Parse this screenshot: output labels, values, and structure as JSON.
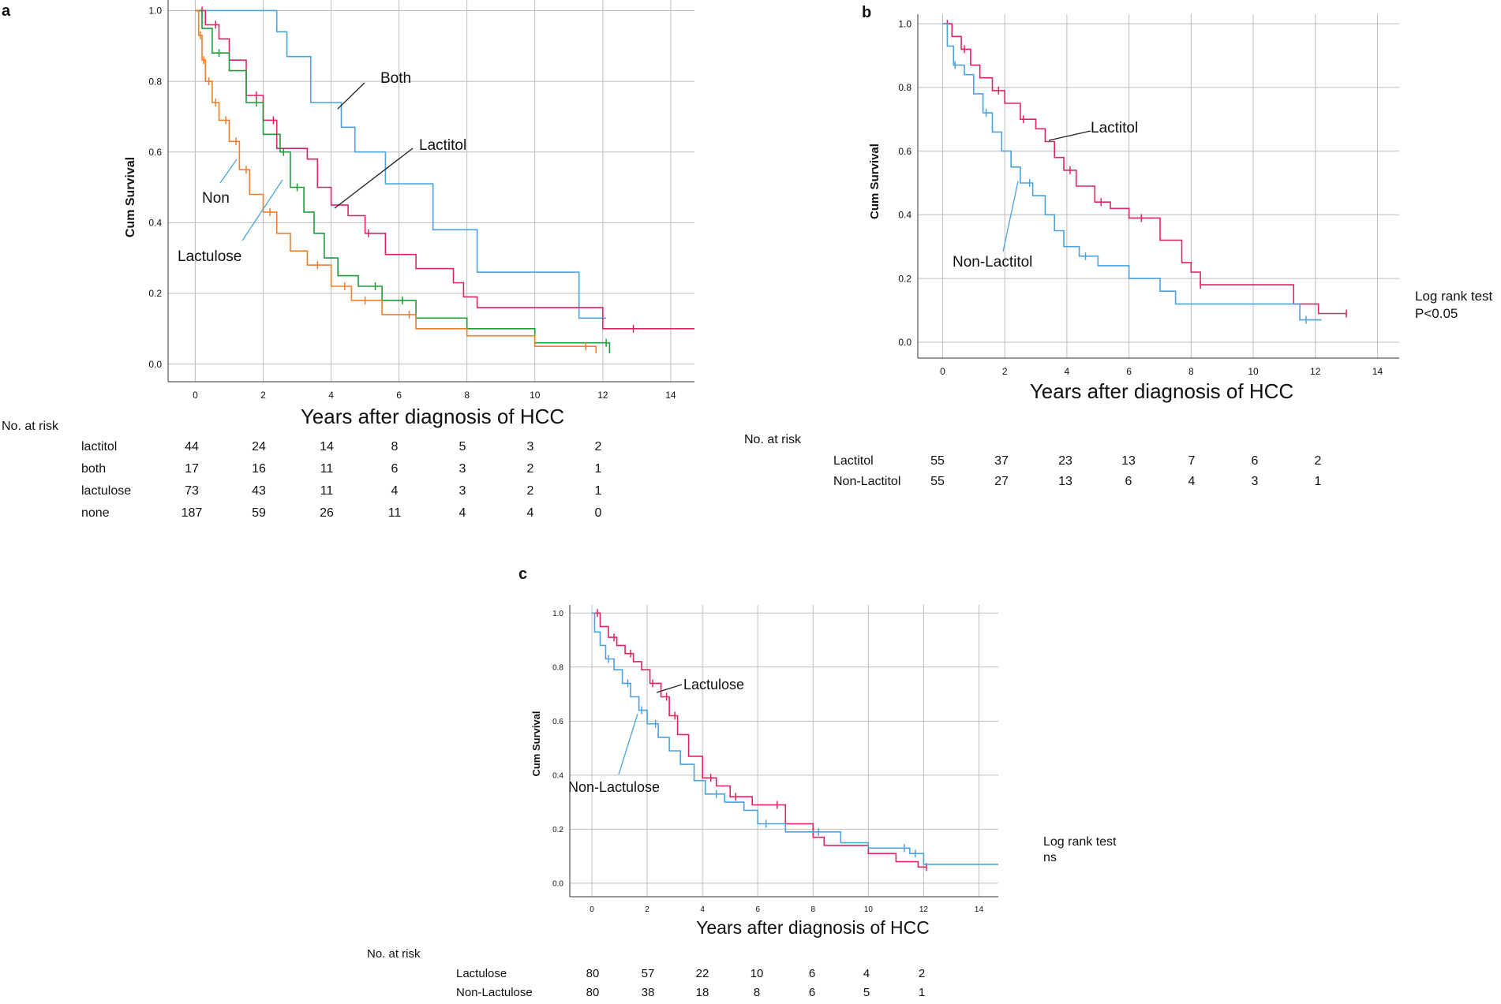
{
  "colors": {
    "lactitol": "#e0245e",
    "both": "#4aa3df",
    "lactulose": "#1f9a3a",
    "none": "#f07f2a",
    "grid": "#bdbdbd",
    "axis": "#333333"
  },
  "chart_data": [
    {
      "panel": "a",
      "type": "line",
      "title": "",
      "xlabel": "Years after diagnosis of HCC",
      "ylabel": "Cum Survival",
      "xlim": [
        -0.8,
        14.7
      ],
      "ylim": [
        -0.05,
        1.03
      ],
      "xticks": [
        "0",
        "2",
        "4",
        "6",
        "8",
        "10",
        "12",
        "14"
      ],
      "yticks": [
        "0.0",
        "0.2",
        "0.4",
        "0.6",
        "0.8",
        "1.0"
      ],
      "grid": true,
      "annotations": [
        "Both",
        "Lactitol",
        "Non",
        "Lactulose"
      ],
      "series": [
        {
          "name": "Both",
          "color_key": "both",
          "x": [
            0,
            2.4,
            2.7,
            3.4,
            4.3,
            4.7,
            5.6,
            7.0,
            8.3,
            11.3,
            12.1
          ],
          "y": [
            1.0,
            0.94,
            0.87,
            0.74,
            0.67,
            0.6,
            0.51,
            0.38,
            0.26,
            0.13,
            0.13
          ]
        },
        {
          "name": "Lactitol",
          "color_key": "lactitol",
          "x": [
            0,
            0.3,
            0.7,
            1.0,
            1.5,
            2.0,
            2.4,
            3.3,
            3.6,
            4.0,
            4.5,
            5.0,
            5.6,
            6.5,
            7.6,
            7.9,
            8.3,
            12.0,
            14.7
          ],
          "y": [
            1.0,
            0.96,
            0.92,
            0.86,
            0.76,
            0.69,
            0.61,
            0.58,
            0.5,
            0.45,
            0.42,
            0.37,
            0.31,
            0.27,
            0.23,
            0.19,
            0.16,
            0.1,
            0.1
          ],
          "censor_x": [
            0.2,
            0.6,
            1.8,
            2.3,
            5.1,
            12.9
          ]
        },
        {
          "name": "Lactulose",
          "color_key": "lactulose",
          "x": [
            0,
            0.2,
            0.5,
            1.0,
            1.5,
            2.0,
            2.5,
            2.8,
            3.2,
            3.5,
            3.8,
            4.2,
            4.8,
            5.5,
            6.5,
            8.0,
            10.0,
            12.2
          ],
          "y": [
            1.0,
            0.95,
            0.88,
            0.83,
            0.74,
            0.65,
            0.6,
            0.5,
            0.43,
            0.37,
            0.3,
            0.25,
            0.22,
            0.18,
            0.13,
            0.1,
            0.06,
            0.03
          ],
          "censor_x": [
            0.7,
            1.8,
            2.6,
            3.0,
            5.3,
            6.1,
            12.1
          ]
        },
        {
          "name": "Non",
          "color_key": "none",
          "x": [
            0,
            0.1,
            0.2,
            0.3,
            0.5,
            0.7,
            1.0,
            1.3,
            1.6,
            2.0,
            2.4,
            2.8,
            3.3,
            4.0,
            4.6,
            5.5,
            6.5,
            8.0,
            10.0,
            11.8
          ],
          "y": [
            1.0,
            0.93,
            0.86,
            0.8,
            0.74,
            0.69,
            0.63,
            0.55,
            0.48,
            0.43,
            0.37,
            0.32,
            0.28,
            0.22,
            0.18,
            0.14,
            0.1,
            0.08,
            0.05,
            0.03
          ],
          "censor_x": [
            0.15,
            0.25,
            0.4,
            0.6,
            0.9,
            1.2,
            1.5,
            2.2,
            3.6,
            4.4,
            5.0,
            6.3,
            11.5
          ]
        }
      ],
      "risk_table": {
        "header": "No. at risk",
        "rows": [
          {
            "label": "lactitol",
            "values": [
              "44",
              "24",
              "14",
              "8",
              "5",
              "3",
              "2"
            ]
          },
          {
            "label": "both",
            "values": [
              "17",
              "16",
              "11",
              "6",
              "3",
              "2",
              "1"
            ]
          },
          {
            "label": "lactulose",
            "values": [
              "73",
              "43",
              "11",
              "4",
              "3",
              "2",
              "1"
            ]
          },
          {
            "label": "none",
            "values": [
              "187",
              "59",
              "26",
              "11",
              "4",
              "4",
              "0"
            ]
          }
        ]
      }
    },
    {
      "panel": "b",
      "type": "line",
      "title": "",
      "xlabel": "Years after diagnosis of HCC",
      "ylabel": "Cum Survival",
      "xlim": [
        -0.8,
        14.7
      ],
      "ylim": [
        -0.05,
        1.03
      ],
      "xticks": [
        "0",
        "2",
        "4",
        "6",
        "8",
        "10",
        "12",
        "14"
      ],
      "yticks": [
        "0.0",
        "0.2",
        "0.4",
        "0.6",
        "0.8",
        "1.0"
      ],
      "grid": true,
      "annotations": [
        "Lactitol",
        "Non-Lactitol"
      ],
      "test": [
        "Log rank test",
        "P<0.05"
      ],
      "series": [
        {
          "name": "Lactitol",
          "color_key": "lactitol",
          "x": [
            0,
            0.3,
            0.6,
            0.9,
            1.2,
            1.6,
            2.0,
            2.5,
            3.0,
            3.3,
            3.6,
            3.9,
            4.3,
            4.9,
            5.4,
            6.0,
            7.0,
            7.7,
            8.0,
            8.3,
            11.3,
            12.1,
            13.0
          ],
          "y": [
            1.0,
            0.96,
            0.92,
            0.87,
            0.83,
            0.79,
            0.75,
            0.7,
            0.67,
            0.63,
            0.58,
            0.54,
            0.49,
            0.44,
            0.42,
            0.39,
            0.32,
            0.25,
            0.22,
            0.18,
            0.12,
            0.09,
            0.09
          ],
          "censor_x": [
            0.15,
            0.7,
            1.8,
            2.6,
            4.1,
            5.1,
            6.4,
            8.3,
            13.0
          ]
        },
        {
          "name": "Non-Lactitol",
          "color_key": "both",
          "x": [
            0,
            0.15,
            0.35,
            0.7,
            1.0,
            1.3,
            1.6,
            1.9,
            2.2,
            2.5,
            2.9,
            3.3,
            3.6,
            3.9,
            4.4,
            5.0,
            6.0,
            7.0,
            7.5,
            11.5,
            12.2
          ],
          "y": [
            1.0,
            0.93,
            0.87,
            0.84,
            0.78,
            0.72,
            0.66,
            0.6,
            0.55,
            0.5,
            0.46,
            0.4,
            0.35,
            0.3,
            0.27,
            0.24,
            0.2,
            0.16,
            0.12,
            0.07,
            0.07
          ],
          "censor_x": [
            0.4,
            1.4,
            2.8,
            4.6,
            11.7
          ]
        }
      ],
      "risk_table": {
        "header": "No. at risk",
        "rows": [
          {
            "label": "Lactitol",
            "values": [
              "55",
              "37",
              "23",
              "13",
              "7",
              "6",
              "2"
            ]
          },
          {
            "label": "Non-Lactitol",
            "values": [
              "55",
              "27",
              "13",
              "6",
              "4",
              "3",
              "1"
            ]
          }
        ]
      }
    },
    {
      "panel": "c",
      "type": "line",
      "title": "",
      "xlabel": "Years after diagnosis of HCC",
      "ylabel": "Cum Survival",
      "xlim": [
        -0.8,
        14.7
      ],
      "ylim": [
        -0.05,
        1.03
      ],
      "xticks": [
        "0",
        "2",
        "4",
        "6",
        "8",
        "10",
        "12",
        "14"
      ],
      "yticks": [
        "0.0",
        "0.2",
        "0.4",
        "0.6",
        "0.8",
        "1.0"
      ],
      "grid": true,
      "annotations": [
        "Lactulose",
        "Non-Lactulose"
      ],
      "test": [
        "Log rank test",
        "ns"
      ],
      "series": [
        {
          "name": "Lactulose",
          "color_key": "lactitol",
          "x": [
            0,
            0.3,
            0.6,
            0.9,
            1.2,
            1.5,
            1.8,
            2.1,
            2.5,
            2.8,
            3.1,
            3.5,
            4.0,
            4.5,
            5.0,
            5.8,
            7.0,
            8.0,
            8.4,
            10.0,
            11.0,
            11.8,
            12.1
          ],
          "y": [
            1.0,
            0.95,
            0.91,
            0.88,
            0.85,
            0.82,
            0.79,
            0.74,
            0.69,
            0.62,
            0.55,
            0.47,
            0.39,
            0.36,
            0.32,
            0.29,
            0.22,
            0.17,
            0.14,
            0.11,
            0.08,
            0.06,
            0.06
          ],
          "censor_x": [
            0.2,
            0.8,
            1.4,
            2.2,
            2.7,
            3.0,
            4.3,
            5.2,
            6.7,
            12.1
          ]
        },
        {
          "name": "Non-Lactulose",
          "color_key": "both",
          "x": [
            0,
            0.1,
            0.3,
            0.5,
            0.8,
            1.1,
            1.4,
            1.7,
            2.0,
            2.4,
            2.8,
            3.2,
            3.7,
            4.1,
            4.8,
            5.5,
            6.0,
            7.0,
            9.0,
            10.0,
            11.5,
            12.0,
            14.7
          ],
          "y": [
            1.0,
            0.93,
            0.88,
            0.83,
            0.79,
            0.74,
            0.69,
            0.64,
            0.59,
            0.54,
            0.49,
            0.44,
            0.38,
            0.33,
            0.3,
            0.27,
            0.22,
            0.19,
            0.15,
            0.13,
            0.11,
            0.07,
            0.07
          ],
          "censor_x": [
            0.6,
            1.3,
            1.8,
            2.3,
            4.5,
            6.3,
            8.2,
            11.3,
            11.7
          ]
        }
      ],
      "risk_table": {
        "header": "No. at risk",
        "rows": [
          {
            "label": "Lactulose",
            "values": [
              "80",
              "57",
              "22",
              "10",
              "6",
              "4",
              "2"
            ]
          },
          {
            "label": "Non-Lactulose",
            "values": [
              "80",
              "38",
              "18",
              "8",
              "6",
              "5",
              "1"
            ]
          }
        ]
      }
    }
  ],
  "panels": {
    "a": {
      "letter": "a"
    },
    "b": {
      "letter": "b"
    },
    "c": {
      "letter": "c"
    }
  }
}
